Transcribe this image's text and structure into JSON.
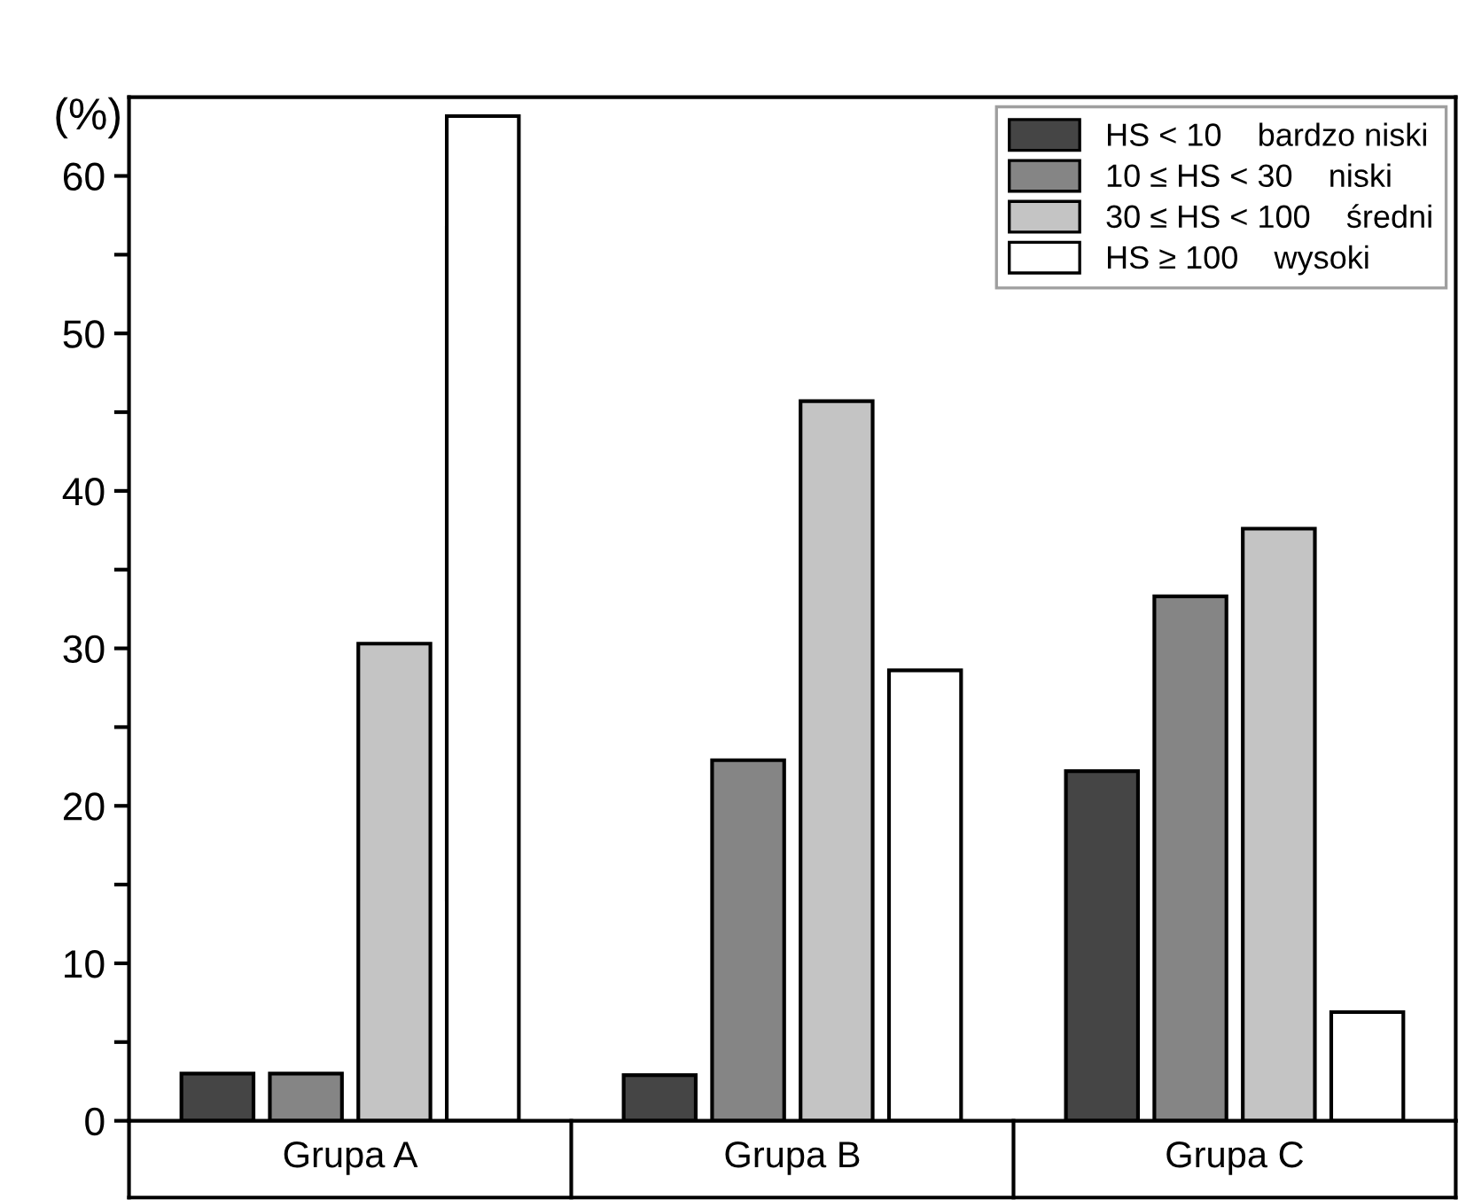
{
  "chart_data": {
    "type": "bar",
    "ylabel": "(%)",
    "categories": [
      "Grupa A",
      "Grupa B",
      "Grupa C"
    ],
    "series": [
      {
        "name": "HS < 10    bardzo niski",
        "color": "#454545",
        "values": [
          3.0,
          2.9,
          22.2
        ]
      },
      {
        "name": "10 ≤ HS < 30    niski",
        "color": "#858585",
        "values": [
          3.0,
          22.9,
          33.3
        ]
      },
      {
        "name": "30 ≤ HS < 100    średni",
        "color": "#c4c4c4",
        "values": [
          30.3,
          45.7,
          37.6
        ]
      },
      {
        "name": "HS ≥ 100    wysoki",
        "color": "#ffffff",
        "values": [
          63.8,
          28.6,
          6.9
        ]
      }
    ],
    "ylim": [
      0,
      65
    ],
    "yticks": [
      0,
      {
        "value": 5,
        "label": null
      },
      10,
      {
        "value": 15,
        "label": null
      },
      20,
      {
        "value": 25,
        "label": null
      },
      30,
      {
        "value": 35,
        "label": null
      },
      40,
      {
        "value": 45,
        "label": null
      },
      50,
      {
        "value": 55,
        "label": null
      },
      60
    ],
    "grid": false,
    "legend": "top right"
  }
}
